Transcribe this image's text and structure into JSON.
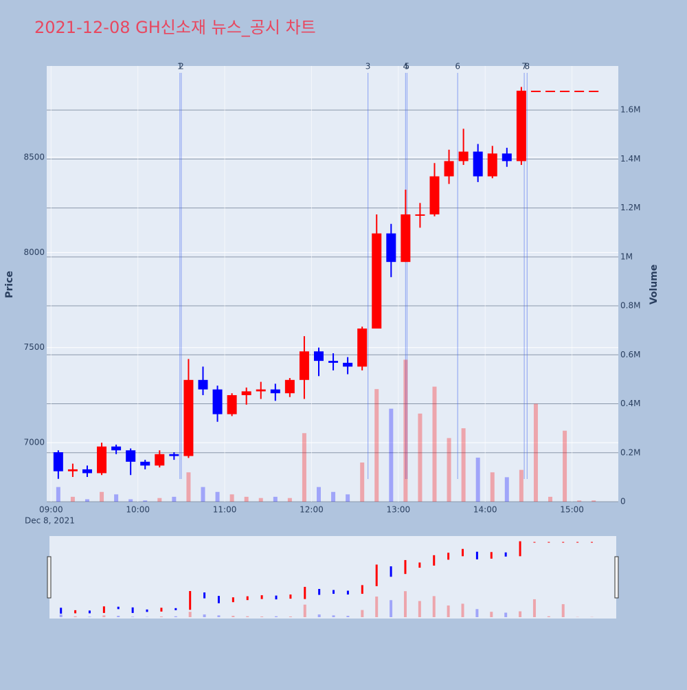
{
  "chart_data": {
    "type": "candlestick",
    "title": "2021-12-08 GH신소재 뉴스_공시 차트",
    "y_label": "Price",
    "y2_label": "Volume",
    "x_date_label": "Dec 8, 2021",
    "x": [
      "09:00",
      "09:10",
      "09:20",
      "09:30",
      "09:40",
      "09:50",
      "10:00",
      "10:10",
      "10:20",
      "10:30",
      "10:40",
      "10:50",
      "11:00",
      "11:10",
      "11:20",
      "11:30",
      "11:40",
      "11:50",
      "12:00",
      "12:10",
      "12:20",
      "12:30",
      "12:40",
      "12:50",
      "13:00",
      "13:10",
      "13:20",
      "13:30",
      "13:40",
      "13:50",
      "14:00",
      "14:10",
      "14:20",
      "14:30",
      "14:40",
      "14:50",
      "15:00",
      "15:10"
    ],
    "open": [
      6950,
      6850,
      6860,
      6840,
      6980,
      6960,
      6900,
      6880,
      6940,
      6930,
      7330,
      7280,
      7150,
      7250,
      7270,
      7280,
      7260,
      7330,
      7480,
      7430,
      7420,
      7400,
      7600,
      8100,
      7950,
      8200,
      8200,
      8400,
      8480,
      8530,
      8400,
      8520,
      8480,
      8850,
      8850,
      8850,
      8850,
      8850
    ],
    "high": [
      6960,
      6890,
      6880,
      7000,
      6990,
      6970,
      6910,
      6960,
      6950,
      7440,
      7400,
      7300,
      7260,
      7290,
      7320,
      7310,
      7340,
      7560,
      7500,
      7470,
      7450,
      7610,
      8200,
      8150,
      8330,
      8260,
      8470,
      8540,
      8650,
      8570,
      8560,
      8550,
      8870,
      8850,
      8850,
      8850,
      8850,
      8850
    ],
    "low": [
      6810,
      6820,
      6820,
      6830,
      6940,
      6830,
      6860,
      6870,
      6910,
      6920,
      7250,
      7110,
      7140,
      7200,
      7230,
      7220,
      7240,
      7230,
      7350,
      7380,
      7360,
      7380,
      7600,
      7870,
      7950,
      8130,
      8190,
      8360,
      8460,
      8370,
      8390,
      8450,
      8460,
      8850,
      8850,
      8850,
      8850,
      8850
    ],
    "close": [
      6850,
      6860,
      6840,
      6980,
      6960,
      6900,
      6880,
      6940,
      6930,
      7330,
      7280,
      7150,
      7250,
      7270,
      7280,
      7260,
      7330,
      7480,
      7430,
      7420,
      7400,
      7600,
      8100,
      7950,
      8200,
      8200,
      8400,
      8480,
      8530,
      8400,
      8520,
      8480,
      8850,
      8850,
      8850,
      8850,
      8850,
      8850
    ],
    "volume": [
      60000,
      20000,
      10000,
      40000,
      30000,
      10000,
      5000,
      15000,
      20000,
      120000,
      60000,
      40000,
      30000,
      20000,
      15000,
      20000,
      15000,
      280000,
      60000,
      40000,
      30000,
      160000,
      460000,
      380000,
      580000,
      360000,
      470000,
      260000,
      300000,
      180000,
      120000,
      100000,
      130000,
      400000,
      20000,
      290000,
      5000,
      5000
    ],
    "increasing_color": "#ff0000",
    "decreasing_color": "#0000ff",
    "xlim": [
      "08:57",
      "15:32"
    ],
    "xticks": [
      "09:00",
      "10:00",
      "11:00",
      "12:00",
      "13:00",
      "14:00",
      "15:00"
    ],
    "ylim": [
      6690,
      8980
    ],
    "yticks": [
      7000,
      7500,
      8000,
      8500
    ],
    "y2lim": [
      0,
      1780000
    ],
    "y2ticks": [
      0,
      {
        "value": 200000,
        "label": "0.2M"
      },
      {
        "value": 400000,
        "label": "0.4M"
      },
      {
        "value": 600000,
        "label": "0.6M"
      },
      {
        "value": 800000,
        "label": "0.8M"
      },
      {
        "value": 1000000,
        "label": "1M"
      },
      {
        "value": 1200000,
        "label": "1.2M"
      },
      {
        "value": 1400000,
        "label": "1.4M"
      },
      {
        "value": 1600000,
        "label": "1.6M"
      }
    ],
    "news": [
      {
        "label": "1",
        "x": "10:29"
      },
      {
        "label": "2",
        "x": "10:30"
      },
      {
        "label": "3",
        "x": "12:39"
      },
      {
        "label": "4",
        "x": "13:05"
      },
      {
        "label": "5",
        "x": "13:06"
      },
      {
        "label": "6",
        "x": "13:41"
      },
      {
        "label": "7",
        "x": "14:27"
      },
      {
        "label": "8",
        "x": "14:29"
      }
    ],
    "grid": true,
    "rangeslider": true
  }
}
